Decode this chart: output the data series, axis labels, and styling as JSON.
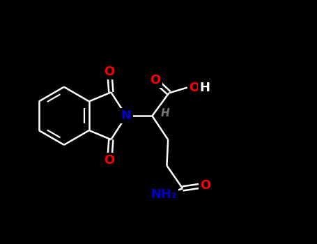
{
  "background_color": "#000000",
  "line_color": "#ffffff",
  "bond_width": 1.8,
  "atom_colors": {
    "O": "#ff0000",
    "N": "#0000cd",
    "H": "#888888",
    "C": "#ffffff"
  },
  "font_size_label": 13,
  "font_size_small": 10,
  "xlim": [
    0,
    10
  ],
  "ylim": [
    0,
    8
  ]
}
